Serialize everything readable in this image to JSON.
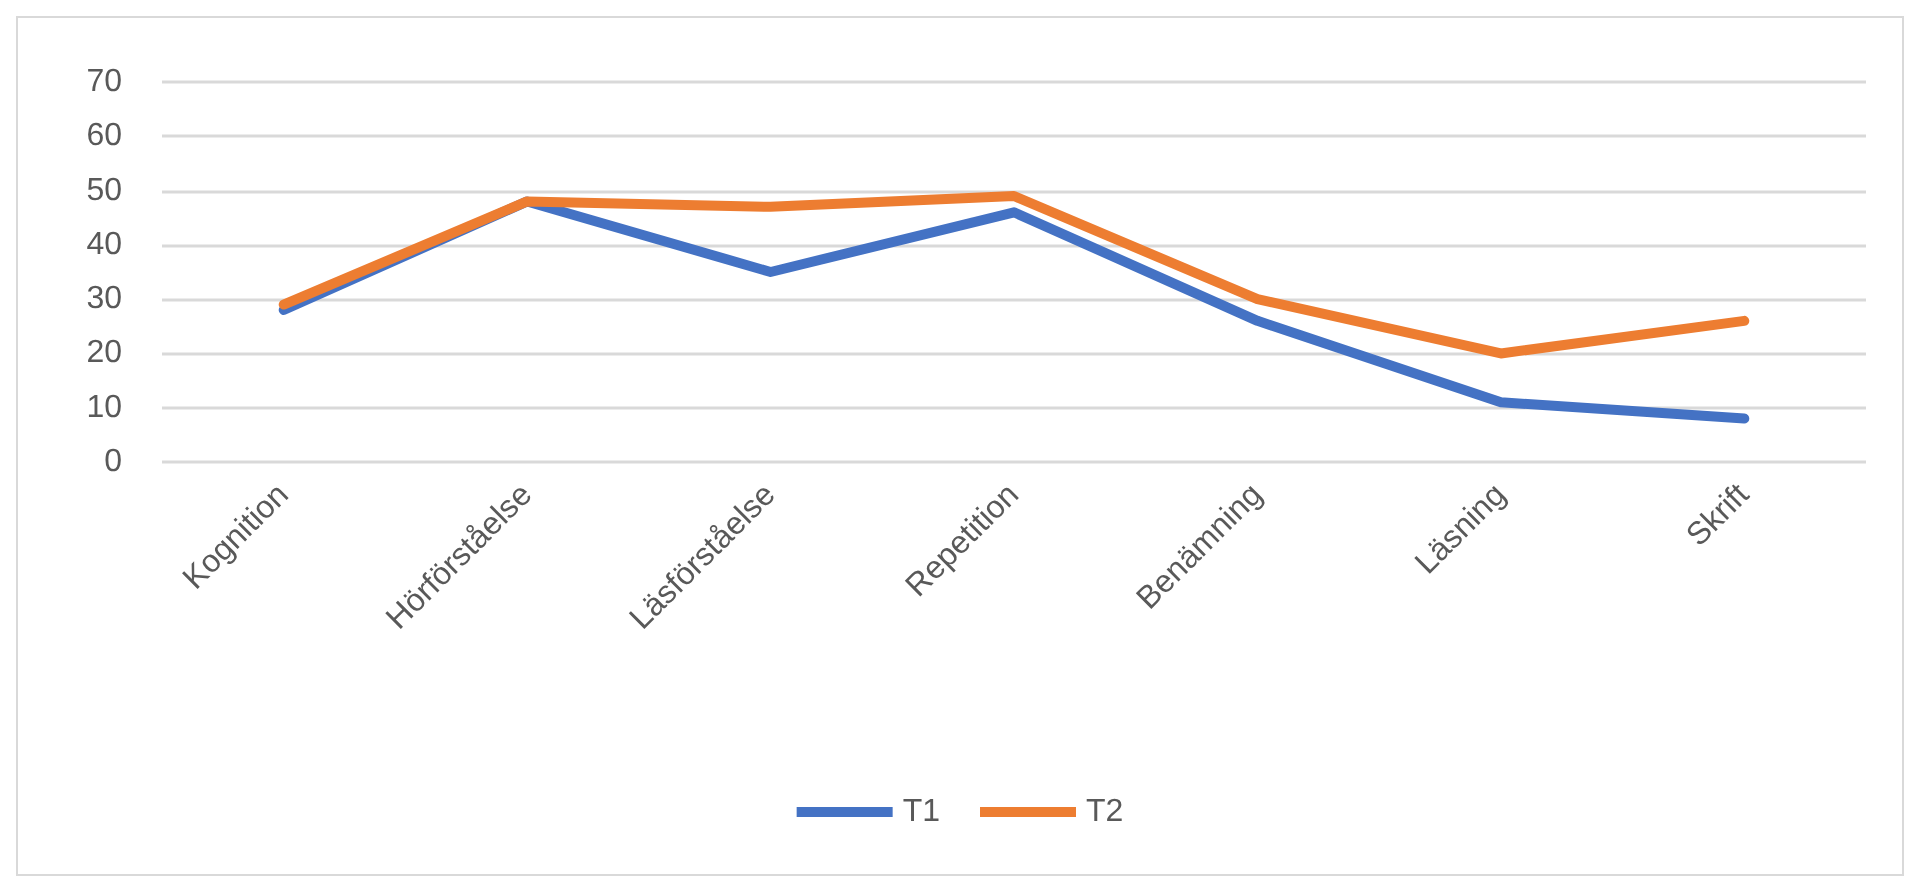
{
  "chart_data": {
    "type": "line",
    "categories": [
      "Kognition",
      "Hörförståelse",
      "Läsförståelse",
      "Repetition",
      "Benämning",
      "Läsning",
      "Skrift"
    ],
    "series": [
      {
        "name": "T1",
        "color": "#4472c4",
        "values": [
          28,
          48,
          35,
          46,
          26,
          11,
          8
        ]
      },
      {
        "name": "T2",
        "color": "#ed7d31",
        "values": [
          29,
          48,
          47,
          49,
          30,
          20,
          26
        ]
      }
    ],
    "ylim": [
      0,
      70
    ],
    "yticks": [
      0,
      10,
      20,
      30,
      40,
      50,
      60,
      70
    ],
    "grid": "y",
    "legend": "bottom",
    "marker": "none",
    "line_style": "solid"
  }
}
